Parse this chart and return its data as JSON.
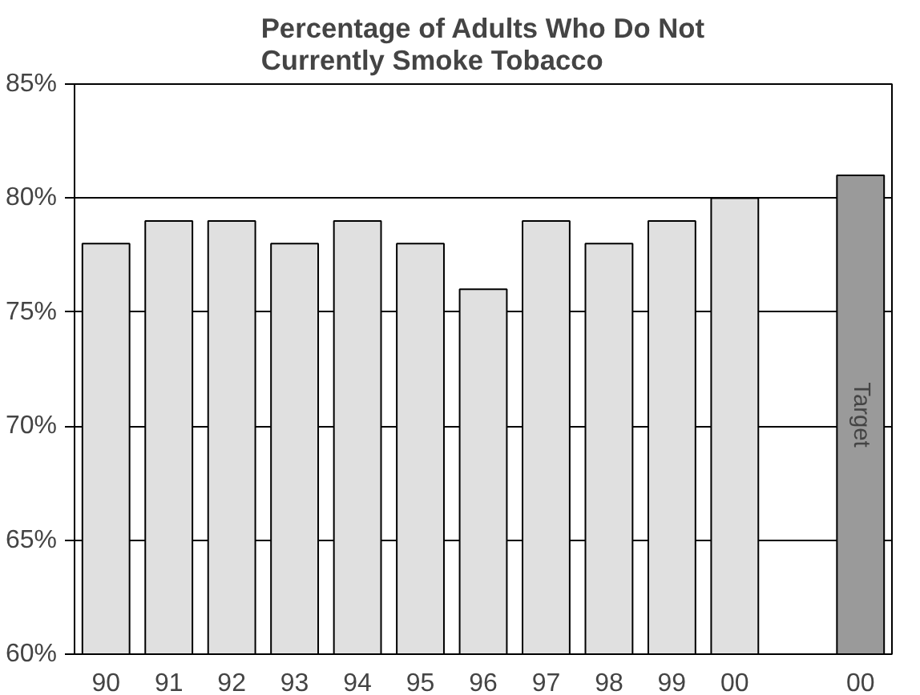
{
  "chart_data": {
    "type": "bar",
    "title": "Percentage of Adults Who Do Not\nCurrently Smoke Tobacco",
    "categories": [
      "90",
      "91",
      "92",
      "93",
      "94",
      "95",
      "96",
      "97",
      "98",
      "99",
      "00",
      null,
      "00"
    ],
    "values": [
      78,
      79,
      79,
      78,
      79,
      78,
      76,
      79,
      78,
      79,
      80,
      null,
      81
    ],
    "colors": [
      "#e0e0e0",
      "#e0e0e0",
      "#e0e0e0",
      "#e0e0e0",
      "#e0e0e0",
      "#e0e0e0",
      "#e0e0e0",
      "#e0e0e0",
      "#e0e0e0",
      "#e0e0e0",
      "#e0e0e0",
      null,
      "#9a9a9a"
    ],
    "ylim": [
      60,
      85
    ],
    "yticks": [
      {
        "value": 60,
        "label": "60%"
      },
      {
        "value": 65,
        "label": "65%"
      },
      {
        "value": 70,
        "label": "70%"
      },
      {
        "value": 75,
        "label": "75%"
      },
      {
        "value": 80,
        "label": "80%"
      },
      {
        "value": 85,
        "label": "85%"
      }
    ],
    "grid": "y",
    "annotations": [
      "Target"
    ]
  }
}
